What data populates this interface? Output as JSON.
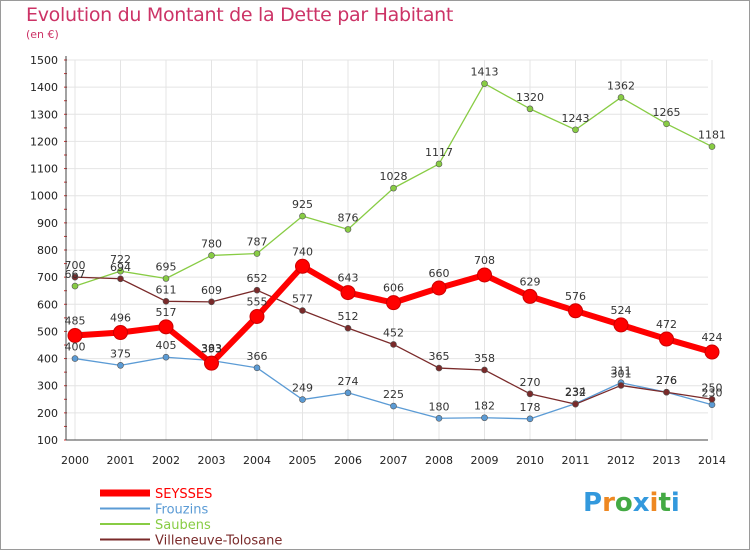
{
  "chart_data": {
    "type": "line",
    "title": "Evolution du Montant de la Dette par Habitant",
    "subtitle": "(en €)",
    "x": [
      "2000",
      "2001",
      "2002",
      "2003",
      "2004",
      "2005",
      "2006",
      "2007",
      "2008",
      "2009",
      "2010",
      "2011",
      "2012",
      "2013",
      "2014"
    ],
    "y_ticks": [
      "100",
      "200",
      "300",
      "400",
      "500",
      "600",
      "700",
      "800",
      "900",
      "1000",
      "1100",
      "1200",
      "1300",
      "1400",
      "1500"
    ],
    "ylim": [
      100,
      1500
    ],
    "grid": true,
    "legend_position": "bottom-left",
    "series": [
      {
        "name": "SEYSSES",
        "color": "#ff0000",
        "values": [
          485,
          496,
          517,
          383,
          555,
          740,
          643,
          606,
          660,
          708,
          629,
          576,
          524,
          472,
          424
        ]
      },
      {
        "name": "Frouzins",
        "color": "#5b9bd5",
        "values": [
          400,
          375,
          405,
          393,
          366,
          249,
          274,
          225,
          180,
          182,
          178,
          234,
          311,
          276,
          230
        ]
      },
      {
        "name": "Saubens",
        "color": "#88cc44",
        "values": [
          667,
          722,
          695,
          780,
          787,
          925,
          876,
          1028,
          1117,
          1413,
          1320,
          1243,
          1362,
          1265,
          1181
        ]
      },
      {
        "name": "Villeneuve-Tolosane",
        "color": "#7a2a2a",
        "values": [
          700,
          694,
          611,
          609,
          652,
          577,
          512,
          452,
          365,
          358,
          270,
          232,
          301,
          276,
          250
        ]
      }
    ]
  },
  "logo": {
    "letters": [
      "P",
      "r",
      "o",
      "x",
      "i",
      "t",
      "i"
    ],
    "colors": [
      "#3399dd",
      "#ee8822",
      "#44aa44",
      "#3399dd",
      "#ee8822",
      "#44aa44",
      "#3399dd"
    ]
  }
}
